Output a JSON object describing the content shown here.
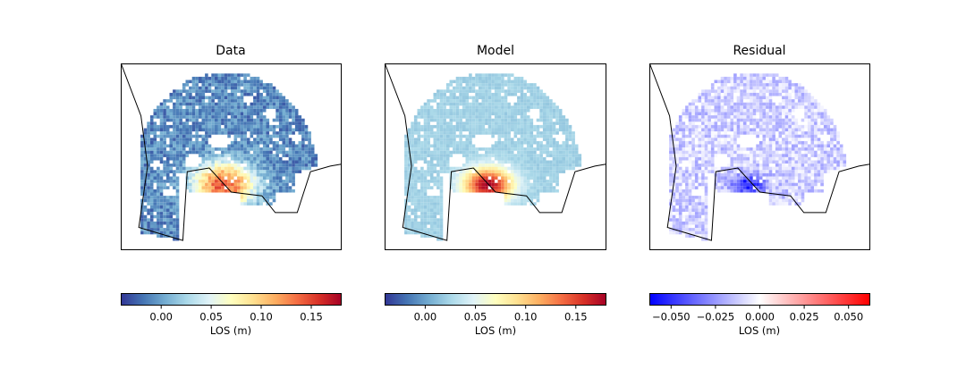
{
  "chart_data": [
    {
      "type": "heatmap",
      "title": "Data",
      "colormap": "RdYlBu_r",
      "colorbar": {
        "label": "LOS (m)",
        "range": [
          -0.04,
          0.18
        ],
        "ticks": [
          0.0,
          0.05,
          0.1,
          0.15
        ],
        "tick_labels": [
          "0.00",
          "0.05",
          "0.10",
          "0.15"
        ]
      },
      "field": {
        "background": 0.0,
        "peak": 0.15,
        "peak_location": "lower-center, along coastline",
        "secondary": 0.03
      }
    },
    {
      "type": "heatmap",
      "title": "Model",
      "colormap": "RdYlBu_r",
      "colorbar": {
        "label": "LOS (m)",
        "range": [
          -0.04,
          0.18
        ],
        "ticks": [
          0.0,
          0.05,
          0.1,
          0.15
        ],
        "tick_labels": [
          "0.00",
          "0.05",
          "0.10",
          "0.15"
        ]
      },
      "field": {
        "background": 0.03,
        "peak": 0.17,
        "peak_location": "lower-center, along coastline"
      }
    },
    {
      "type": "heatmap",
      "title": "Residual",
      "colormap": "bwr",
      "colorbar": {
        "label": "LOS (m)",
        "range": [
          -0.062,
          0.062
        ],
        "ticks": [
          -0.05,
          -0.025,
          0.0,
          0.025,
          0.05
        ],
        "tick_labels": [
          "−0.050",
          "−0.025",
          "0.000",
          "0.025",
          "0.050"
        ]
      },
      "field": {
        "background": -0.01,
        "min": -0.06,
        "min_location": "lower-center, along coastline",
        "max": 0.02
      }
    }
  ],
  "colors": {
    "coastline": "#000000",
    "frame": "#000000"
  }
}
